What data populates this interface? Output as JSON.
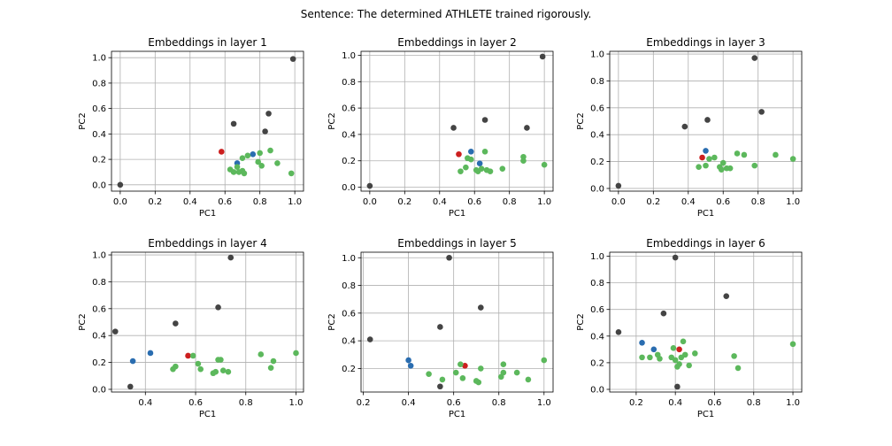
{
  "suptitle": "Sentence: The determined ATHLETE trained rigorously.",
  "colors": {
    "gray": "#444444",
    "green": "#5cb85c",
    "blue": "#2a6db0",
    "red": "#cc1f1f"
  },
  "chart_data": [
    {
      "type": "scatter",
      "title": "Embeddings in layer 1",
      "xlabel": "PC1",
      "ylabel": "PC2",
      "xlim": [
        -0.05,
        1.05
      ],
      "ylim": [
        -0.05,
        1.05
      ],
      "xticks": [
        "0.0",
        "0.2",
        "0.4",
        "0.6",
        "0.8",
        "1.0"
      ],
      "yticks": [
        "0.0",
        "0.2",
        "0.4",
        "0.6",
        "0.8",
        "1.0"
      ],
      "grid": true,
      "points": [
        {
          "x": 0.0,
          "y": 0.0,
          "c": "gray"
        },
        {
          "x": 0.99,
          "y": 0.99,
          "c": "gray"
        },
        {
          "x": 0.65,
          "y": 0.48,
          "c": "gray"
        },
        {
          "x": 0.85,
          "y": 0.56,
          "c": "gray"
        },
        {
          "x": 0.83,
          "y": 0.42,
          "c": "gray"
        },
        {
          "x": 0.58,
          "y": 0.26,
          "c": "red"
        },
        {
          "x": 0.67,
          "y": 0.17,
          "c": "blue"
        },
        {
          "x": 0.76,
          "y": 0.24,
          "c": "blue"
        },
        {
          "x": 0.63,
          "y": 0.12,
          "c": "green"
        },
        {
          "x": 0.65,
          "y": 0.1,
          "c": "green"
        },
        {
          "x": 0.68,
          "y": 0.1,
          "c": "green"
        },
        {
          "x": 0.67,
          "y": 0.14,
          "c": "green"
        },
        {
          "x": 0.7,
          "y": 0.11,
          "c": "green"
        },
        {
          "x": 0.71,
          "y": 0.09,
          "c": "green"
        },
        {
          "x": 0.7,
          "y": 0.21,
          "c": "green"
        },
        {
          "x": 0.73,
          "y": 0.23,
          "c": "green"
        },
        {
          "x": 0.79,
          "y": 0.18,
          "c": "green"
        },
        {
          "x": 0.81,
          "y": 0.15,
          "c": "green"
        },
        {
          "x": 0.8,
          "y": 0.25,
          "c": "green"
        },
        {
          "x": 0.86,
          "y": 0.27,
          "c": "green"
        },
        {
          "x": 0.9,
          "y": 0.17,
          "c": "green"
        },
        {
          "x": 0.98,
          "y": 0.09,
          "c": "green"
        }
      ]
    },
    {
      "type": "scatter",
      "title": "Embeddings in layer 2",
      "xlabel": "PC1",
      "ylabel": "PC2",
      "xlim": [
        -0.05,
        1.05
      ],
      "ylim": [
        -0.03,
        1.03
      ],
      "xticks": [
        "0.0",
        "0.2",
        "0.4",
        "0.6",
        "0.8",
        "1.0"
      ],
      "yticks": [
        "0.0",
        "0.2",
        "0.4",
        "0.6",
        "0.8",
        "1.0"
      ],
      "grid": true,
      "points": [
        {
          "x": 0.0,
          "y": 0.01,
          "c": "gray"
        },
        {
          "x": 0.99,
          "y": 0.99,
          "c": "gray"
        },
        {
          "x": 0.48,
          "y": 0.45,
          "c": "gray"
        },
        {
          "x": 0.66,
          "y": 0.51,
          "c": "gray"
        },
        {
          "x": 0.9,
          "y": 0.45,
          "c": "gray"
        },
        {
          "x": 0.51,
          "y": 0.25,
          "c": "red"
        },
        {
          "x": 0.58,
          "y": 0.27,
          "c": "blue"
        },
        {
          "x": 0.63,
          "y": 0.18,
          "c": "blue"
        },
        {
          "x": 0.52,
          "y": 0.12,
          "c": "green"
        },
        {
          "x": 0.55,
          "y": 0.15,
          "c": "green"
        },
        {
          "x": 0.56,
          "y": 0.22,
          "c": "green"
        },
        {
          "x": 0.58,
          "y": 0.21,
          "c": "green"
        },
        {
          "x": 0.61,
          "y": 0.13,
          "c": "green"
        },
        {
          "x": 0.62,
          "y": 0.12,
          "c": "green"
        },
        {
          "x": 0.64,
          "y": 0.14,
          "c": "green"
        },
        {
          "x": 0.66,
          "y": 0.27,
          "c": "green"
        },
        {
          "x": 0.67,
          "y": 0.13,
          "c": "green"
        },
        {
          "x": 0.69,
          "y": 0.12,
          "c": "green"
        },
        {
          "x": 0.76,
          "y": 0.14,
          "c": "green"
        },
        {
          "x": 0.88,
          "y": 0.2,
          "c": "green"
        },
        {
          "x": 0.88,
          "y": 0.23,
          "c": "green"
        },
        {
          "x": 1.0,
          "y": 0.17,
          "c": "green"
        }
      ]
    },
    {
      "type": "scatter",
      "title": "Embeddings in layer 3",
      "xlabel": "PC1",
      "ylabel": "PC2",
      "xlim": [
        -0.05,
        1.05
      ],
      "ylim": [
        -0.02,
        1.02
      ],
      "xticks": [
        "0.0",
        "0.2",
        "0.4",
        "0.6",
        "0.8",
        "1.0"
      ],
      "yticks": [
        "0.0",
        "0.2",
        "0.4",
        "0.6",
        "0.8",
        "1.0"
      ],
      "grid": true,
      "points": [
        {
          "x": 0.0,
          "y": 0.02,
          "c": "gray"
        },
        {
          "x": 0.78,
          "y": 0.97,
          "c": "gray"
        },
        {
          "x": 0.38,
          "y": 0.46,
          "c": "gray"
        },
        {
          "x": 0.51,
          "y": 0.51,
          "c": "gray"
        },
        {
          "x": 0.82,
          "y": 0.57,
          "c": "gray"
        },
        {
          "x": 0.48,
          "y": 0.23,
          "c": "red"
        },
        {
          "x": 0.5,
          "y": 0.28,
          "c": "blue"
        },
        {
          "x": 0.46,
          "y": 0.16,
          "c": "green"
        },
        {
          "x": 0.5,
          "y": 0.17,
          "c": "green"
        },
        {
          "x": 0.52,
          "y": 0.22,
          "c": "green"
        },
        {
          "x": 0.55,
          "y": 0.23,
          "c": "green"
        },
        {
          "x": 0.58,
          "y": 0.16,
          "c": "green"
        },
        {
          "x": 0.59,
          "y": 0.14,
          "c": "green"
        },
        {
          "x": 0.6,
          "y": 0.19,
          "c": "green"
        },
        {
          "x": 0.62,
          "y": 0.15,
          "c": "green"
        },
        {
          "x": 0.64,
          "y": 0.15,
          "c": "green"
        },
        {
          "x": 0.68,
          "y": 0.26,
          "c": "green"
        },
        {
          "x": 0.72,
          "y": 0.25,
          "c": "green"
        },
        {
          "x": 0.78,
          "y": 0.17,
          "c": "green"
        },
        {
          "x": 0.9,
          "y": 0.25,
          "c": "green"
        },
        {
          "x": 1.0,
          "y": 0.22,
          "c": "green"
        }
      ]
    },
    {
      "type": "scatter",
      "title": "Embeddings in layer 4",
      "xlabel": "PC1",
      "ylabel": "PC2",
      "xlim": [
        0.265,
        1.03
      ],
      "ylim": [
        -0.02,
        1.02
      ],
      "xticks": [
        "0.4",
        "0.6",
        "0.8",
        "1.0"
      ],
      "yticks": [
        "0.0",
        "0.2",
        "0.4",
        "0.6",
        "0.8",
        "1.0"
      ],
      "grid": true,
      "points": [
        {
          "x": 0.28,
          "y": 0.43,
          "c": "gray"
        },
        {
          "x": 0.34,
          "y": 0.02,
          "c": "gray"
        },
        {
          "x": 0.52,
          "y": 0.49,
          "c": "gray"
        },
        {
          "x": 0.69,
          "y": 0.61,
          "c": "gray"
        },
        {
          "x": 0.74,
          "y": 0.98,
          "c": "gray"
        },
        {
          "x": 0.57,
          "y": 0.25,
          "c": "red"
        },
        {
          "x": 0.35,
          "y": 0.21,
          "c": "blue"
        },
        {
          "x": 0.42,
          "y": 0.27,
          "c": "blue"
        },
        {
          "x": 0.51,
          "y": 0.15,
          "c": "green"
        },
        {
          "x": 0.52,
          "y": 0.17,
          "c": "green"
        },
        {
          "x": 0.59,
          "y": 0.25,
          "c": "green"
        },
        {
          "x": 0.61,
          "y": 0.19,
          "c": "green"
        },
        {
          "x": 0.62,
          "y": 0.15,
          "c": "green"
        },
        {
          "x": 0.67,
          "y": 0.12,
          "c": "green"
        },
        {
          "x": 0.68,
          "y": 0.13,
          "c": "green"
        },
        {
          "x": 0.69,
          "y": 0.22,
          "c": "green"
        },
        {
          "x": 0.7,
          "y": 0.22,
          "c": "green"
        },
        {
          "x": 0.71,
          "y": 0.14,
          "c": "green"
        },
        {
          "x": 0.73,
          "y": 0.13,
          "c": "green"
        },
        {
          "x": 0.86,
          "y": 0.26,
          "c": "green"
        },
        {
          "x": 0.9,
          "y": 0.16,
          "c": "green"
        },
        {
          "x": 0.91,
          "y": 0.21,
          "c": "green"
        },
        {
          "x": 1.0,
          "y": 0.27,
          "c": "green"
        }
      ]
    },
    {
      "type": "scatter",
      "title": "Embeddings in layer 5",
      "xlabel": "PC1",
      "ylabel": "PC2",
      "xlim": [
        0.19,
        1.04
      ],
      "ylim": [
        0.03,
        1.04
      ],
      "xticks": [
        "0.2",
        "0.4",
        "0.6",
        "0.8",
        "1.0"
      ],
      "yticks": [
        "0.2",
        "0.4",
        "0.6",
        "0.8",
        "1.0"
      ],
      "grid": true,
      "points": [
        {
          "x": 0.23,
          "y": 0.41,
          "c": "gray"
        },
        {
          "x": 0.54,
          "y": 0.07,
          "c": "gray"
        },
        {
          "x": 0.54,
          "y": 0.5,
          "c": "gray"
        },
        {
          "x": 0.58,
          "y": 1.0,
          "c": "gray"
        },
        {
          "x": 0.72,
          "y": 0.64,
          "c": "gray"
        },
        {
          "x": 0.65,
          "y": 0.22,
          "c": "red"
        },
        {
          "x": 0.4,
          "y": 0.26,
          "c": "blue"
        },
        {
          "x": 0.41,
          "y": 0.22,
          "c": "blue"
        },
        {
          "x": 0.49,
          "y": 0.16,
          "c": "green"
        },
        {
          "x": 0.55,
          "y": 0.12,
          "c": "green"
        },
        {
          "x": 0.61,
          "y": 0.17,
          "c": "green"
        },
        {
          "x": 0.63,
          "y": 0.23,
          "c": "green"
        },
        {
          "x": 0.64,
          "y": 0.13,
          "c": "green"
        },
        {
          "x": 0.7,
          "y": 0.11,
          "c": "green"
        },
        {
          "x": 0.71,
          "y": 0.1,
          "c": "green"
        },
        {
          "x": 0.72,
          "y": 0.2,
          "c": "green"
        },
        {
          "x": 0.81,
          "y": 0.14,
          "c": "green"
        },
        {
          "x": 0.82,
          "y": 0.17,
          "c": "green"
        },
        {
          "x": 0.82,
          "y": 0.23,
          "c": "green"
        },
        {
          "x": 0.88,
          "y": 0.17,
          "c": "green"
        },
        {
          "x": 0.93,
          "y": 0.12,
          "c": "green"
        },
        {
          "x": 1.0,
          "y": 0.26,
          "c": "green"
        }
      ]
    },
    {
      "type": "scatter",
      "title": "Embeddings in layer 6",
      "xlabel": "PC1",
      "ylabel": "PC2",
      "xlim": [
        0.065,
        1.045
      ],
      "ylim": [
        -0.02,
        1.03
      ],
      "xticks": [
        "0.2",
        "0.4",
        "0.6",
        "0.8",
        "1.0"
      ],
      "yticks": [
        "0.0",
        "0.2",
        "0.4",
        "0.6",
        "0.8",
        "1.0"
      ],
      "grid": true,
      "points": [
        {
          "x": 0.11,
          "y": 0.43,
          "c": "gray"
        },
        {
          "x": 0.34,
          "y": 0.57,
          "c": "gray"
        },
        {
          "x": 0.4,
          "y": 0.99,
          "c": "gray"
        },
        {
          "x": 0.41,
          "y": 0.02,
          "c": "gray"
        },
        {
          "x": 0.66,
          "y": 0.7,
          "c": "gray"
        },
        {
          "x": 0.42,
          "y": 0.3,
          "c": "red"
        },
        {
          "x": 0.23,
          "y": 0.35,
          "c": "blue"
        },
        {
          "x": 0.29,
          "y": 0.3,
          "c": "blue"
        },
        {
          "x": 0.23,
          "y": 0.24,
          "c": "green"
        },
        {
          "x": 0.27,
          "y": 0.24,
          "c": "green"
        },
        {
          "x": 0.31,
          "y": 0.26,
          "c": "green"
        },
        {
          "x": 0.32,
          "y": 0.23,
          "c": "green"
        },
        {
          "x": 0.38,
          "y": 0.24,
          "c": "green"
        },
        {
          "x": 0.39,
          "y": 0.31,
          "c": "green"
        },
        {
          "x": 0.4,
          "y": 0.22,
          "c": "green"
        },
        {
          "x": 0.41,
          "y": 0.17,
          "c": "green"
        },
        {
          "x": 0.42,
          "y": 0.19,
          "c": "green"
        },
        {
          "x": 0.43,
          "y": 0.24,
          "c": "green"
        },
        {
          "x": 0.44,
          "y": 0.36,
          "c": "green"
        },
        {
          "x": 0.45,
          "y": 0.26,
          "c": "green"
        },
        {
          "x": 0.47,
          "y": 0.18,
          "c": "green"
        },
        {
          "x": 0.5,
          "y": 0.27,
          "c": "green"
        },
        {
          "x": 0.7,
          "y": 0.25,
          "c": "green"
        },
        {
          "x": 0.72,
          "y": 0.16,
          "c": "green"
        },
        {
          "x": 1.0,
          "y": 0.34,
          "c": "green"
        }
      ]
    }
  ]
}
